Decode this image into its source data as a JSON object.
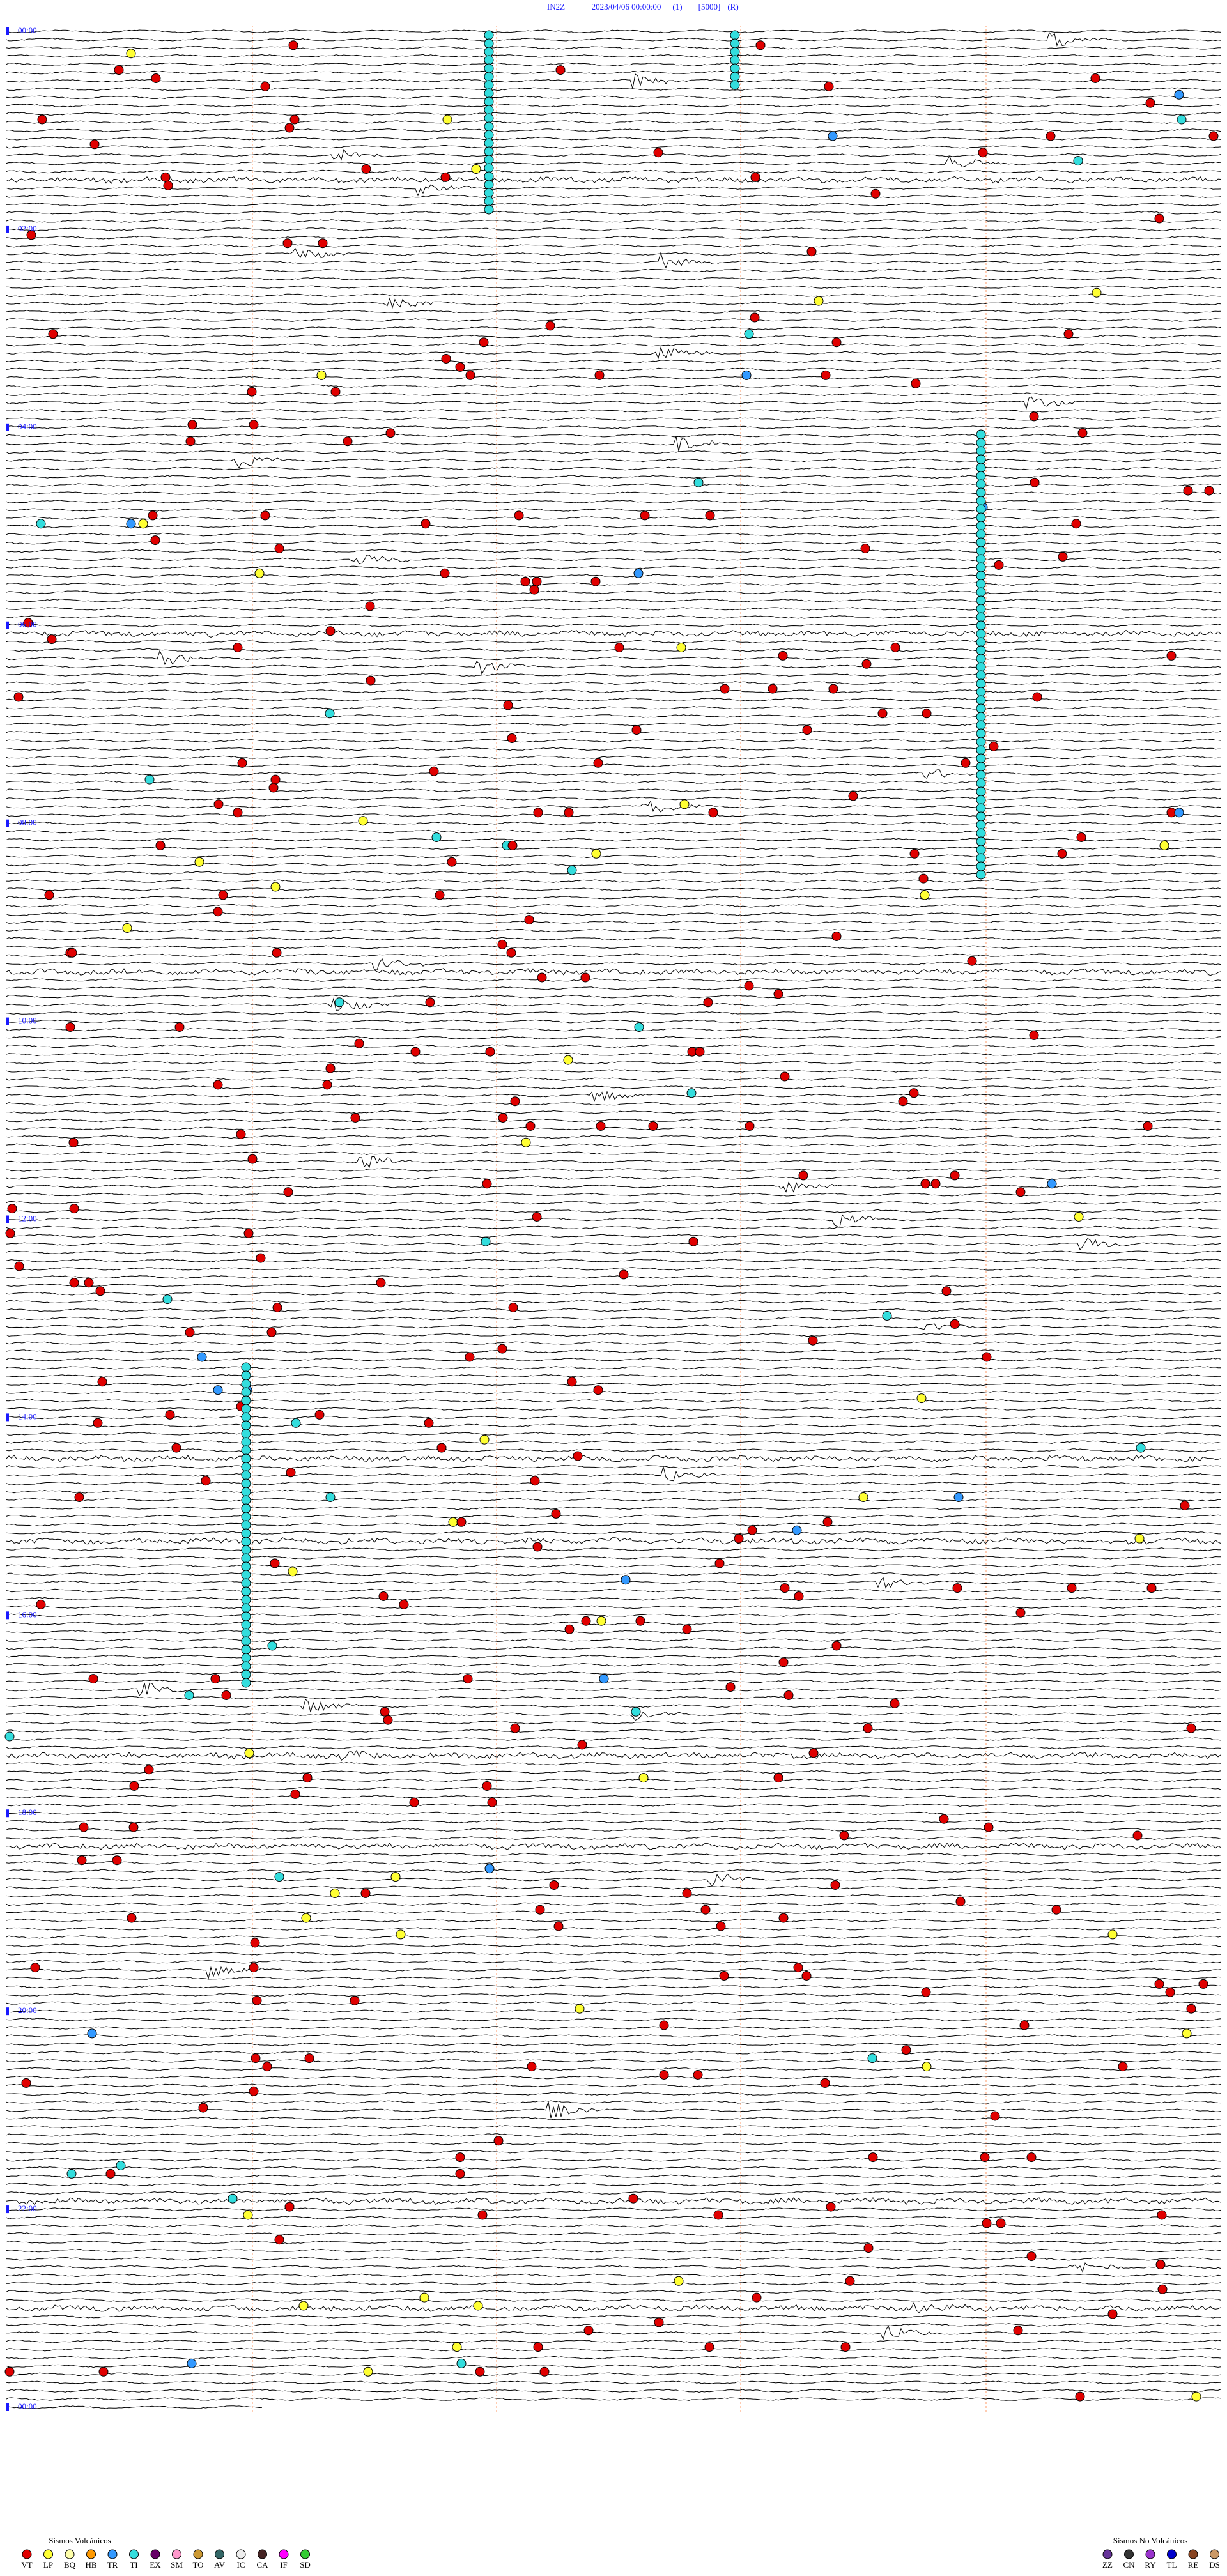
{
  "header": {
    "station": "IN2Z",
    "datetime": "2023/04/06 00:00:00",
    "channel": "(1)",
    "gain": "[5000]",
    "mode": "(R)"
  },
  "time_labels": [
    "00:00",
    "02:00",
    "04:00",
    "06:00",
    "08:00",
    "10:00",
    "12:00",
    "14:00",
    "16:00",
    "18:00",
    "20:00",
    "22:00",
    "00:00"
  ],
  "legend": {
    "volcanic": {
      "title": "Sismos Volcánicos",
      "items": [
        {
          "code": "VT",
          "color": "#e00000"
        },
        {
          "code": "LP",
          "color": "#ffff33"
        },
        {
          "code": "BQ",
          "color": "#ffffaa"
        },
        {
          "code": "HB",
          "color": "#ff9900"
        },
        {
          "code": "TR",
          "color": "#3399ff"
        },
        {
          "code": "TI",
          "color": "#33dddd"
        },
        {
          "code": "EX",
          "color": "#660066"
        },
        {
          "code": "SM",
          "color": "#ff99cc"
        },
        {
          "code": "TO",
          "color": "#cc9933"
        },
        {
          "code": "AV",
          "color": "#336666"
        },
        {
          "code": "IC",
          "color": "#eeeeee"
        },
        {
          "code": "CA",
          "color": "#442222"
        },
        {
          "code": "IF",
          "color": "#ff00ff"
        },
        {
          "code": "SD",
          "color": "#33cc33"
        }
      ]
    },
    "non_volcanic": {
      "title": "Sismos No Volcánicos",
      "items": [
        {
          "code": "ZZ",
          "color": "#663399"
        },
        {
          "code": "CN",
          "color": "#333333"
        },
        {
          "code": "RY",
          "color": "#9933cc"
        },
        {
          "code": "TL",
          "color": "#0000cc"
        },
        {
          "code": "RE",
          "color": "#884422"
        },
        {
          "code": "DS",
          "color": "#cc9966"
        }
      ]
    }
  }
}
